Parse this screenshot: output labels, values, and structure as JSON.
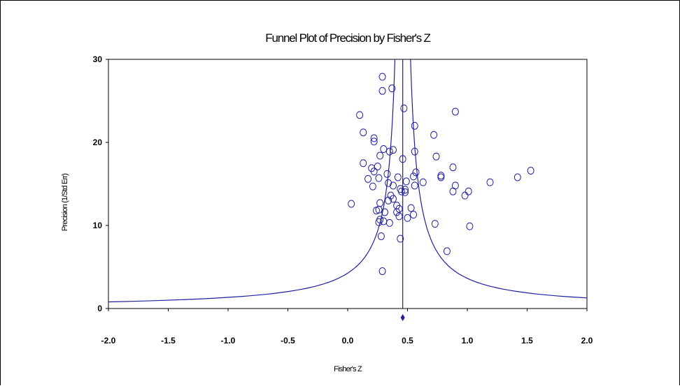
{
  "chart_data": {
    "type": "scatter",
    "title": "Funnel Plot of Precision by Fisher's Z",
    "xlabel": "Fisher's Z",
    "ylabel": "Precision (1/Std Err)",
    "xlim": [
      -2.0,
      2.0
    ],
    "ylim": [
      0,
      30
    ],
    "xticks": [
      "-2.0",
      "-1.5",
      "-1.0",
      "-0.5",
      "0.0",
      "0.5",
      "1.0",
      "1.5",
      "2.0"
    ],
    "yticks": [
      "0",
      "10",
      "20",
      "30"
    ],
    "grid": false,
    "combined_effect": 0.46,
    "points": [
      [
        0.29,
        27.9
      ],
      [
        0.37,
        26.5
      ],
      [
        0.29,
        26.2
      ],
      [
        0.47,
        24.1
      ],
      [
        0.1,
        23.3
      ],
      [
        0.9,
        23.7
      ],
      [
        0.56,
        22.0
      ],
      [
        0.13,
        21.2
      ],
      [
        0.72,
        20.9
      ],
      [
        0.22,
        20.5
      ],
      [
        0.22,
        20.1
      ],
      [
        0.3,
        19.2
      ],
      [
        0.35,
        18.9
      ],
      [
        0.38,
        19.1
      ],
      [
        0.56,
        18.9
      ],
      [
        0.27,
        18.4
      ],
      [
        0.46,
        18.0
      ],
      [
        0.74,
        18.3
      ],
      [
        0.13,
        17.5
      ],
      [
        0.25,
        17.1
      ],
      [
        0.2,
        16.9
      ],
      [
        0.88,
        17.0
      ],
      [
        0.22,
        16.5
      ],
      [
        0.33,
        16.2
      ],
      [
        0.57,
        16.4
      ],
      [
        0.55,
        15.9
      ],
      [
        0.78,
        16.0
      ],
      [
        0.78,
        15.8
      ],
      [
        0.17,
        15.6
      ],
      [
        0.26,
        15.7
      ],
      [
        0.42,
        15.8
      ],
      [
        0.63,
        15.2
      ],
      [
        0.49,
        15.3
      ],
      [
        1.19,
        15.2
      ],
      [
        1.42,
        15.8
      ],
      [
        1.53,
        16.6
      ],
      [
        0.34,
        15.1
      ],
      [
        0.38,
        14.8
      ],
      [
        0.21,
        14.7
      ],
      [
        0.56,
        14.8
      ],
      [
        0.9,
        14.8
      ],
      [
        0.44,
        14.4
      ],
      [
        0.48,
        14.3
      ],
      [
        0.45,
        14.1
      ],
      [
        0.48,
        14.0
      ],
      [
        0.88,
        14.1
      ],
      [
        1.01,
        14.1
      ],
      [
        0.36,
        13.6
      ],
      [
        0.98,
        13.6
      ],
      [
        0.38,
        13.2
      ],
      [
        0.34,
        13.0
      ],
      [
        0.03,
        12.6
      ],
      [
        0.27,
        12.7
      ],
      [
        0.41,
        12.4
      ],
      [
        0.43,
        12.0
      ],
      [
        0.26,
        11.9
      ],
      [
        0.53,
        12.1
      ],
      [
        0.24,
        11.8
      ],
      [
        0.31,
        11.6
      ],
      [
        0.41,
        11.6
      ],
      [
        0.55,
        11.3
      ],
      [
        0.43,
        11.1
      ],
      [
        0.27,
        10.7
      ],
      [
        0.5,
        10.9
      ],
      [
        0.26,
        10.4
      ],
      [
        0.3,
        10.5
      ],
      [
        0.35,
        10.3
      ],
      [
        0.73,
        10.2
      ],
      [
        1.02,
        9.9
      ],
      [
        0.28,
        8.7
      ],
      [
        0.44,
        8.4
      ],
      [
        0.83,
        6.9
      ],
      [
        0.29,
        4.5
      ]
    ]
  }
}
